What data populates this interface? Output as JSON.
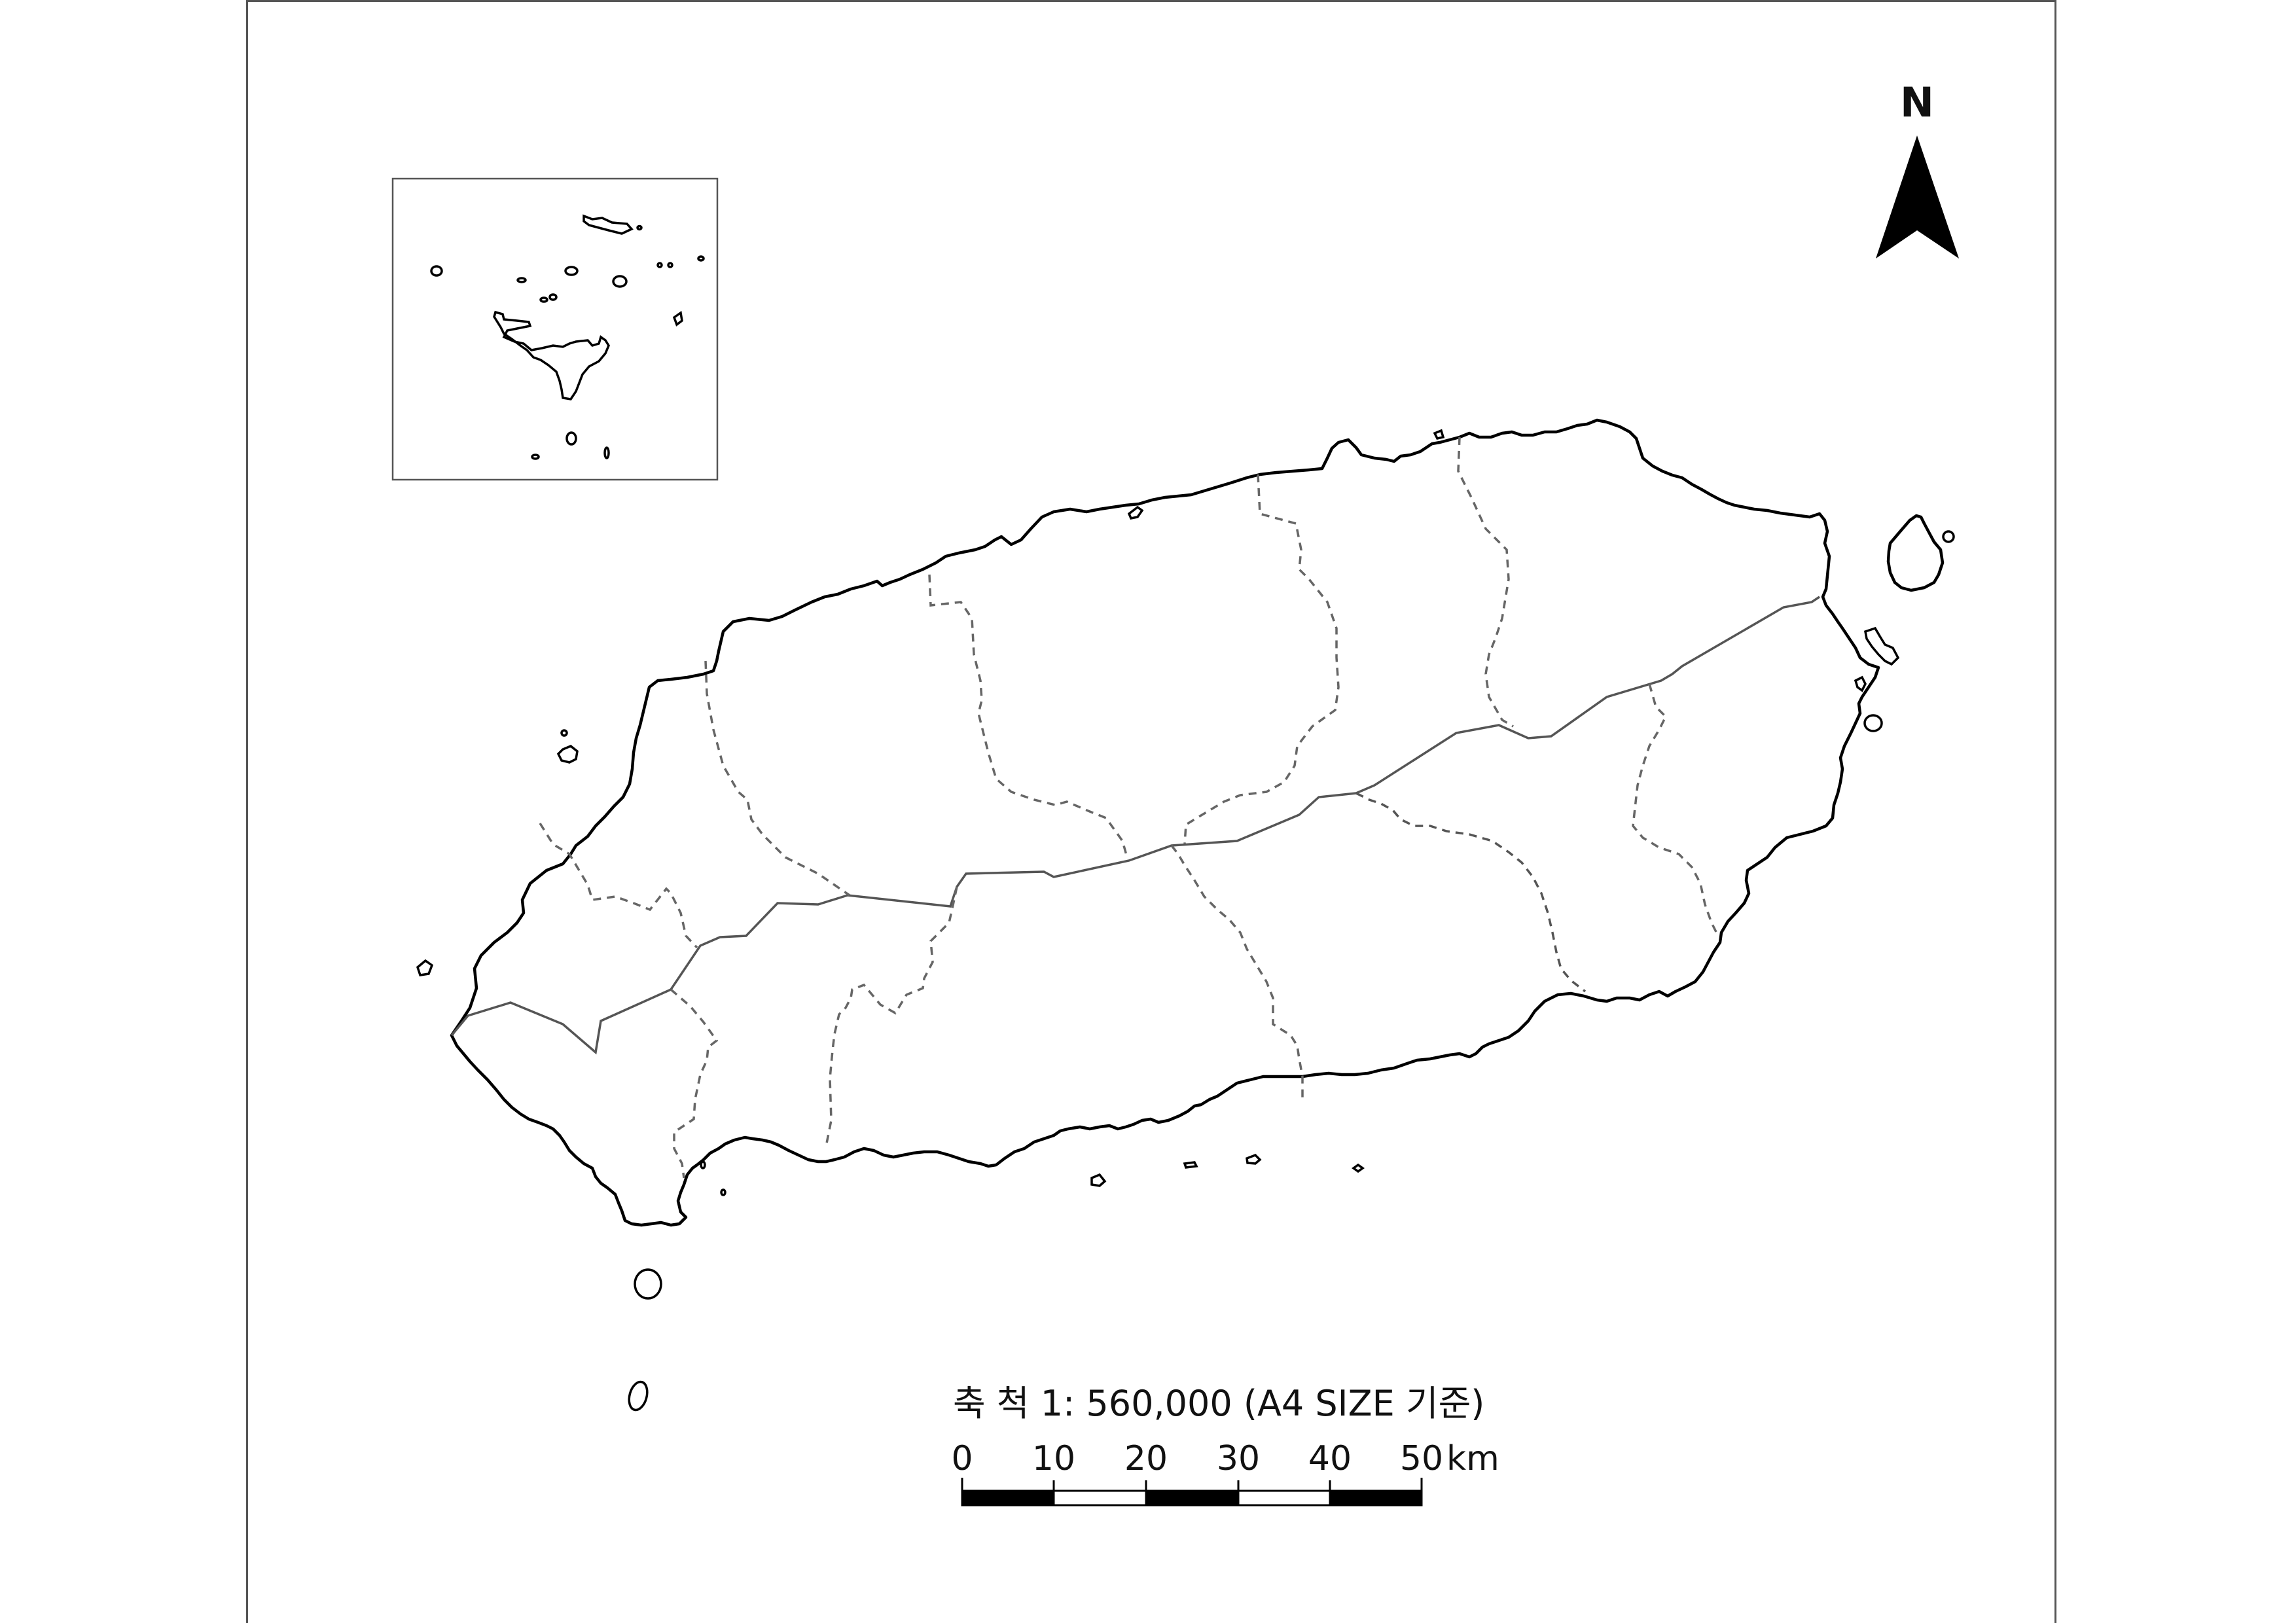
{
  "north_arrow": {
    "label": "N"
  },
  "scale": {
    "title": "축 척 1: 560,000 (A4 SIZE 기준)",
    "ticks": [
      "0",
      "10",
      "20",
      "30",
      "40",
      "50"
    ],
    "unit": "km"
  }
}
